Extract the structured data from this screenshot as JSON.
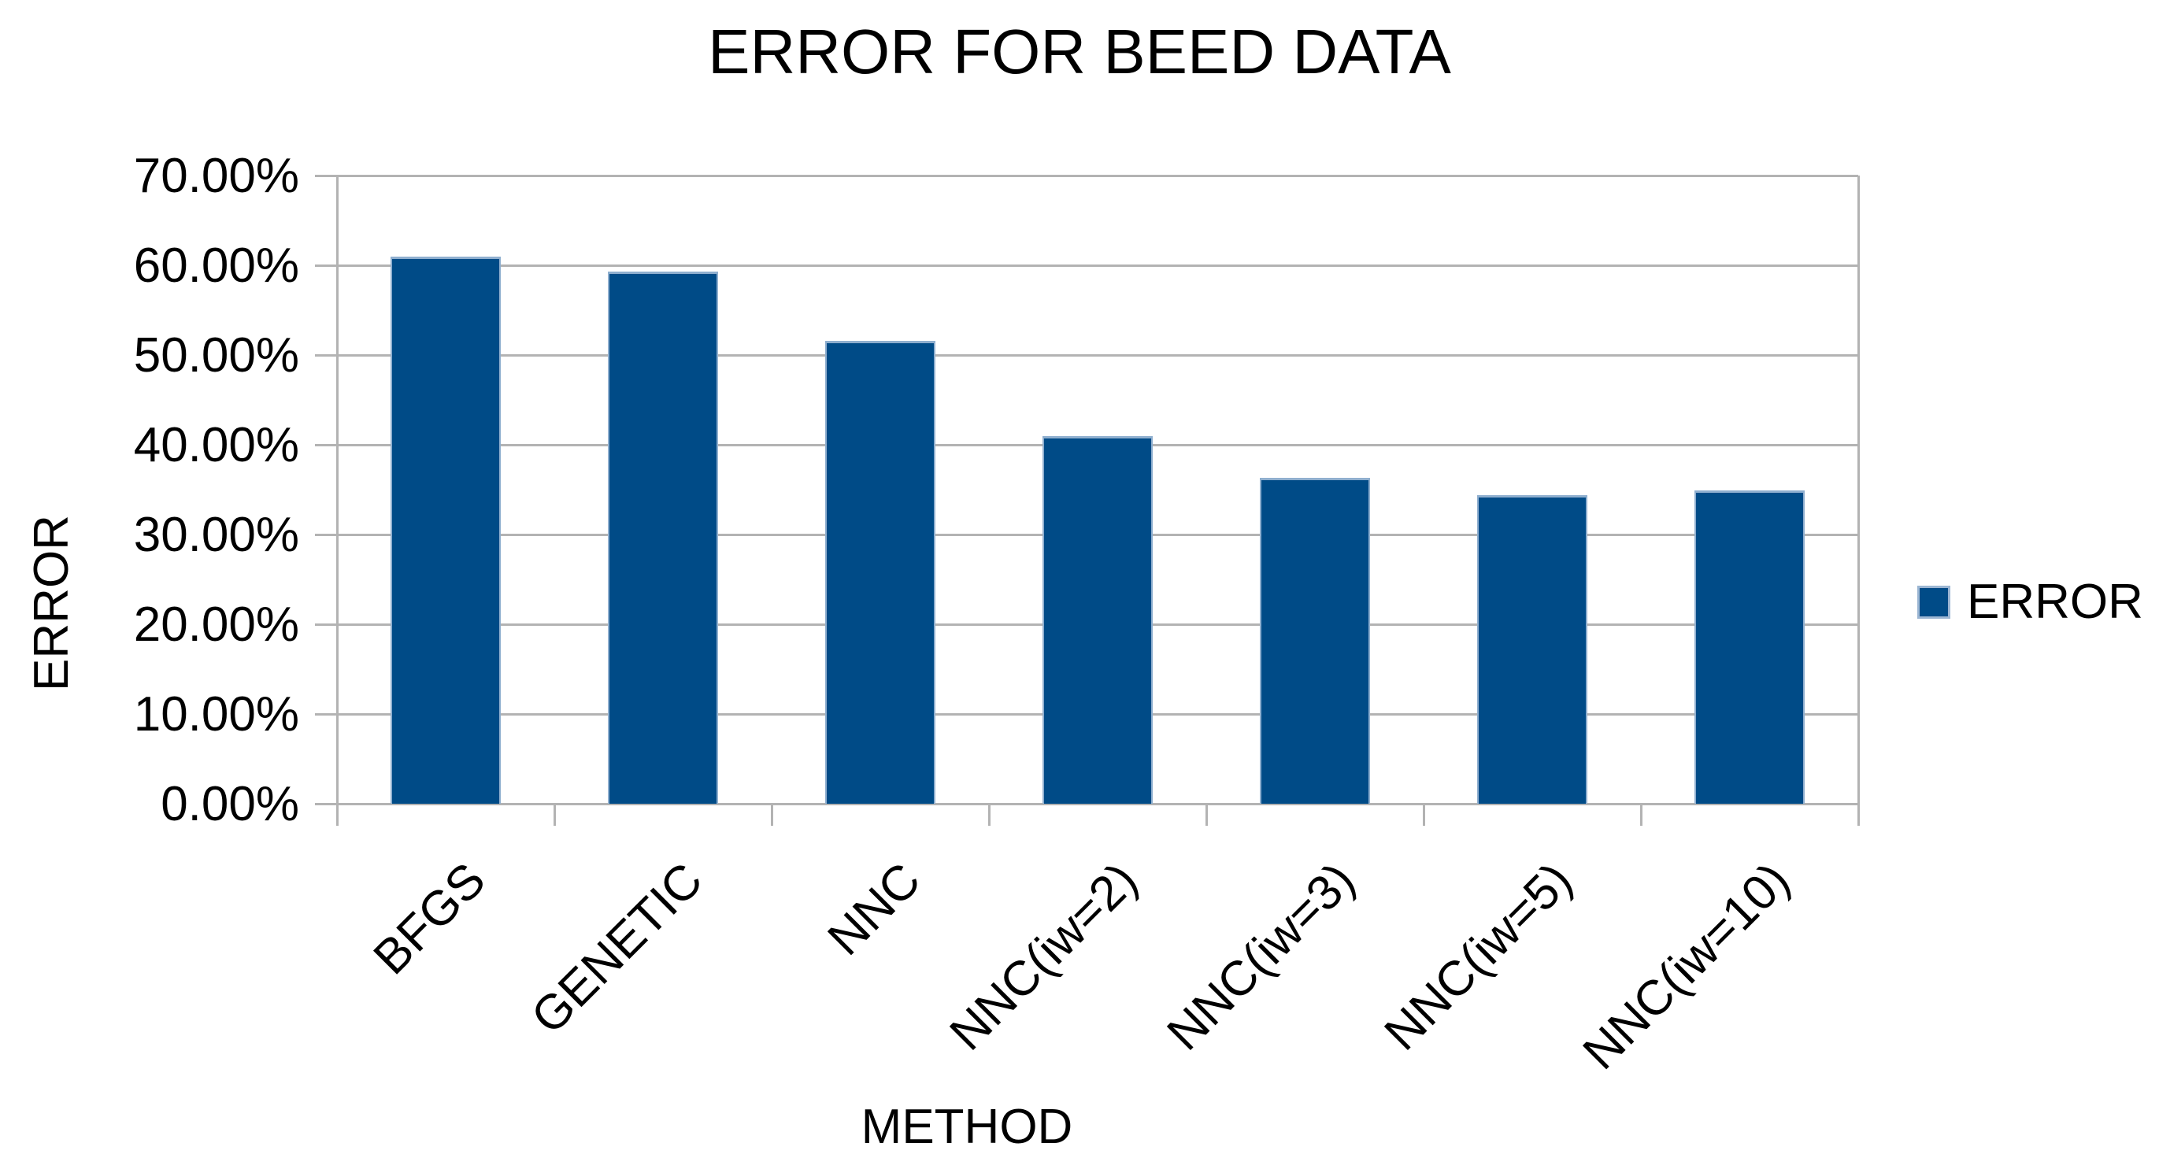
{
  "chart_data": {
    "type": "bar",
    "title": "ERROR FOR BEED DATA",
    "xlabel": "METHOD",
    "ylabel": "ERROR",
    "categories": [
      "BFGS",
      "GENETIC",
      "NNC",
      "NNC(iw=2)",
      "NNC(iw=3)",
      "NNC(iw=5)",
      "NNC(iw=10)"
    ],
    "series": [
      {
        "name": "ERROR",
        "values": [
          61.0,
          59.3,
          51.6,
          41.0,
          36.3,
          34.4,
          34.9
        ]
      }
    ],
    "value_unit": "%",
    "ylim": [
      0,
      70
    ],
    "ytick_step": 10,
    "ytick_labels": [
      "70.00%",
      "60.00%",
      "50.00%",
      "40.00%",
      "30.00%",
      "20.00%",
      "10.00%",
      "0.00%"
    ],
    "grid": true,
    "legend_position": "right",
    "colors": {
      "bar": "#004b87",
      "bar_edge": "#8fafcf",
      "grid": "#b3b3b3",
      "axis": "#b3b3b3",
      "text": "#000000",
      "background": "#ffffff"
    }
  },
  "legend": {
    "label": "ERROR"
  }
}
